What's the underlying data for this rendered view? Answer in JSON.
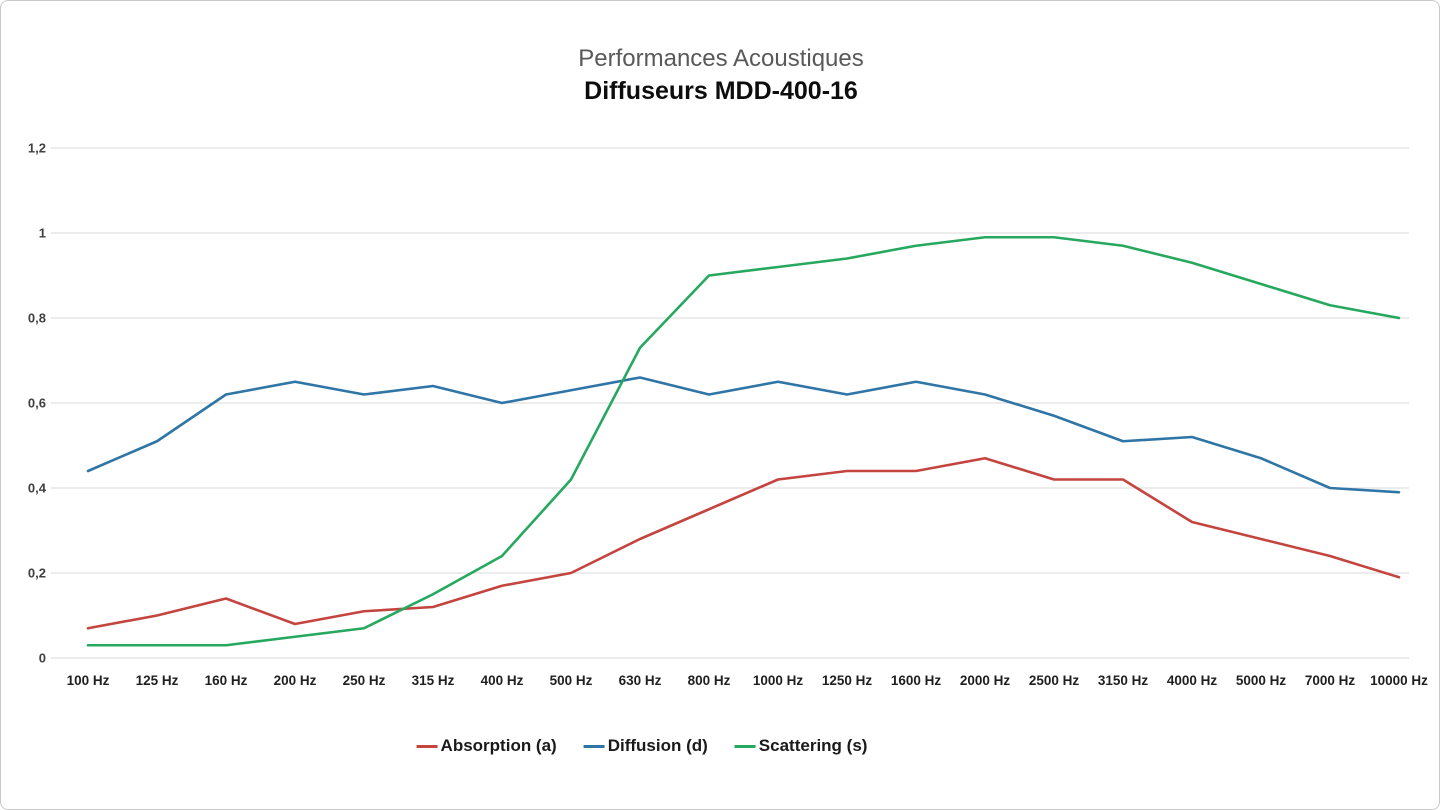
{
  "chart": {
    "title": "Performances Acoustiques",
    "subtitle": "Diffuseurs MDD-400-16",
    "y_tick_labels": [
      "0",
      "0,2",
      "0,4",
      "0,6",
      "0,8",
      "1",
      "1,2"
    ]
  },
  "chart_data": {
    "type": "line",
    "title": "Performances Acoustiques",
    "subtitle": "Diffuseurs MDD-400-16",
    "categories": [
      "100 Hz",
      "125 Hz",
      "160 Hz",
      "200 Hz",
      "250 Hz",
      "315 Hz",
      "400 Hz",
      "500 Hz",
      "630 Hz",
      "800 Hz",
      "1000 Hz",
      "1250 Hz",
      "1600 Hz",
      "2000 Hz",
      "2500 Hz",
      "3150 Hz",
      "4000 Hz",
      "5000 Hz",
      "7000 Hz",
      "10000 Hz"
    ],
    "series": [
      {
        "name": "Absorption (a)",
        "color": "#c4443f",
        "values": [
          0.07,
          0.1,
          0.14,
          0.08,
          0.11,
          0.12,
          0.17,
          0.2,
          0.28,
          0.35,
          0.42,
          0.44,
          0.44,
          0.47,
          0.42,
          0.42,
          0.32,
          0.28,
          0.24,
          0.19
        ]
      },
      {
        "name": "Diffusion (d)",
        "color": "#2f75a6",
        "values": [
          0.44,
          0.51,
          0.62,
          0.65,
          0.62,
          0.64,
          0.6,
          0.63,
          0.66,
          0.62,
          0.65,
          0.62,
          0.65,
          0.62,
          0.57,
          0.51,
          0.52,
          0.47,
          0.4,
          0.39
        ]
      },
      {
        "name": "Scattering (s)",
        "color": "#27a85f",
        "values": [
          0.03,
          0.03,
          0.03,
          0.05,
          0.07,
          0.15,
          0.24,
          0.42,
          0.73,
          0.9,
          0.92,
          0.94,
          0.97,
          0.99,
          0.99,
          0.97,
          0.93,
          0.88,
          0.83,
          0.8
        ]
      }
    ],
    "xlabel": "",
    "ylabel": "",
    "ylim": [
      0,
      1.2
    ],
    "y_ticks": [
      0,
      0.2,
      0.4,
      0.6,
      0.8,
      1.0,
      1.2
    ],
    "grid": true,
    "legend_position": "bottom",
    "gridline_color": "#d9d9d9",
    "tick_label_color": "#404040",
    "x_label_color": "#1f1f1f"
  }
}
